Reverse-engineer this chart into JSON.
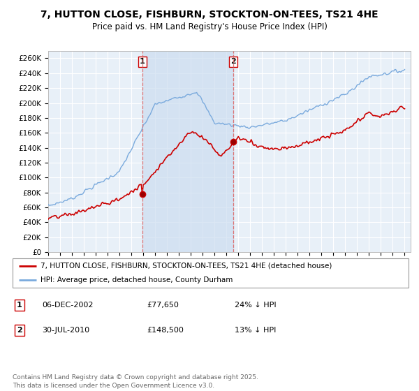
{
  "title": "7, HUTTON CLOSE, FISHBURN, STOCKTON-ON-TEES, TS21 4HE",
  "subtitle": "Price paid vs. HM Land Registry's House Price Index (HPI)",
  "red_label": "7, HUTTON CLOSE, FISHBURN, STOCKTON-ON-TEES, TS21 4HE (detached house)",
  "blue_label": "HPI: Average price, detached house, County Durham",
  "point1_date": "06-DEC-2002",
  "point1_price": "£77,650",
  "point1_hpi": "24% ↓ HPI",
  "point2_date": "30-JUL-2010",
  "point2_price": "£148,500",
  "point2_hpi": "13% ↓ HPI",
  "footer": "Contains HM Land Registry data © Crown copyright and database right 2025.\nThis data is licensed under the Open Government Licence v3.0.",
  "red_color": "#cc0000",
  "blue_color": "#7aaadd",
  "shade_color": "#ddeeff",
  "vline_color": "#dd6666",
  "bg_color": "#ddeeff",
  "grid_color": "#ffffff",
  "plot_bg": "#e8f0f8",
  "ylim": [
    0,
    270000
  ],
  "yticks": [
    0,
    20000,
    40000,
    60000,
    80000,
    100000,
    120000,
    140000,
    160000,
    180000,
    200000,
    220000,
    240000,
    260000
  ],
  "point1_x": 2002.92,
  "point2_x": 2010.58,
  "xlim_start": 1995.0,
  "xlim_end": 2025.5
}
